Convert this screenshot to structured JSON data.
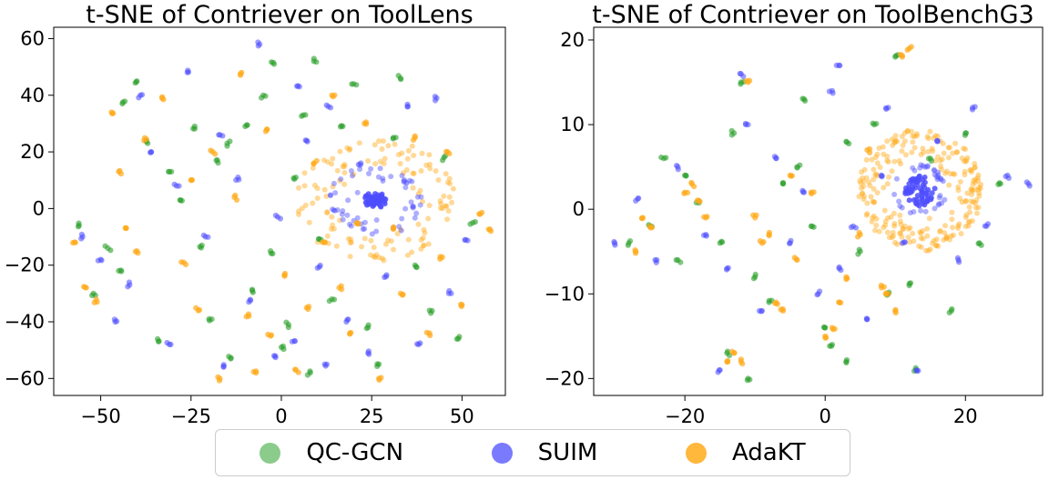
{
  "legend": {
    "items": [
      {
        "label": "QC-GCN",
        "color": "#2ca02c"
      },
      {
        "label": "SUIM",
        "color": "#4d4dff"
      },
      {
        "label": "AdaKT",
        "color": "#ffaa1a"
      }
    ]
  },
  "chart_data": [
    {
      "type": "scatter",
      "title": "t-SNE of Contriever on ToolLens",
      "xlabel": "",
      "ylabel": "",
      "xlim": [
        -63,
        62
      ],
      "ylim": [
        -66,
        64
      ],
      "xticks": [
        -50,
        -25,
        0,
        25,
        50
      ],
      "xtick_labels": [
        "−50",
        "−25",
        "0",
        "25",
        "50"
      ],
      "yticks": [
        -60,
        -40,
        -20,
        0,
        20,
        40,
        60
      ],
      "ytick_labels": [
        "−60",
        "−40",
        "−20",
        "0",
        "20",
        "40",
        "60"
      ],
      "grid": false,
      "series": [
        {
          "name": "QC-GCN",
          "color": "#2ca02c",
          "points": [
            [
              -56,
              -6
            ],
            [
              -48,
              -14
            ],
            [
              -45,
              -22
            ],
            [
              -44,
              37
            ],
            [
              -40,
              45
            ],
            [
              -37,
              23
            ],
            [
              -31,
              13
            ],
            [
              -28,
              3
            ],
            [
              -24,
              29
            ],
            [
              -22,
              -13
            ],
            [
              -18,
              17
            ],
            [
              -15,
              23
            ],
            [
              -10,
              29
            ],
            [
              -8,
              -29
            ],
            [
              -5,
              40
            ],
            [
              -2,
              51
            ],
            [
              0,
              -49
            ],
            [
              4,
              11
            ],
            [
              6,
              33
            ],
            [
              9,
              52
            ],
            [
              11,
              -11
            ],
            [
              14,
              -32
            ],
            [
              20,
              44
            ],
            [
              24,
              -42
            ],
            [
              31,
              25
            ],
            [
              33,
              46
            ],
            [
              37,
              -20
            ],
            [
              41,
              -36
            ],
            [
              45,
              18
            ],
            [
              49,
              -46
            ],
            [
              53,
              -5
            ],
            [
              -52,
              -30
            ],
            [
              -34,
              -47
            ],
            [
              -20,
              -39
            ],
            [
              -14,
              -53
            ],
            [
              -3,
              -15
            ],
            [
              2,
              -41
            ],
            [
              8,
              -58
            ],
            [
              17,
              29
            ],
            [
              27,
              -55
            ]
          ]
        },
        {
          "name": "SUIM",
          "color": "#4d4dff",
          "points": [
            [
              -55,
              -10
            ],
            [
              -50,
              -18
            ],
            [
              -42,
              -27
            ],
            [
              -39,
              40
            ],
            [
              -36,
              20
            ],
            [
              -29,
              8
            ],
            [
              -26,
              48
            ],
            [
              -21,
              -10
            ],
            [
              -17,
              26
            ],
            [
              -12,
              11
            ],
            [
              -9,
              -33
            ],
            [
              -6,
              58
            ],
            [
              -1,
              -3
            ],
            [
              3,
              -47
            ],
            [
              7,
              24
            ],
            [
              10,
              -21
            ],
            [
              13,
              36
            ],
            [
              18,
              -40
            ],
            [
              22,
              16
            ],
            [
              29,
              -24
            ],
            [
              34,
              10
            ],
            [
              38,
              -48
            ],
            [
              43,
              39
            ],
            [
              47,
              -30
            ],
            [
              51,
              -11
            ],
            [
              -46,
              -40
            ],
            [
              -31,
              -48
            ],
            [
              -16,
              -56
            ],
            [
              -2,
              -52
            ],
            [
              12,
              -55
            ],
            [
              24,
              -51
            ],
            [
              35,
              36
            ],
            [
              5,
              43
            ]
          ]
        },
        {
          "name": "AdaKT",
          "color": "#ffaa1a",
          "points": [
            [
              -57,
              -12
            ],
            [
              -54,
              -28
            ],
            [
              -51,
              -33
            ],
            [
              -47,
              34
            ],
            [
              -43,
              -7
            ],
            [
              -38,
              24
            ],
            [
              -33,
              39
            ],
            [
              -27,
              -19
            ],
            [
              -23,
              -36
            ],
            [
              -19,
              20
            ],
            [
              -13,
              4
            ],
            [
              -9,
              -38
            ],
            [
              -7,
              -58
            ],
            [
              -4,
              28
            ],
            [
              1,
              -23
            ],
            [
              4,
              -57
            ],
            [
              9,
              16
            ],
            [
              12,
              -12
            ],
            [
              16,
              -28
            ],
            [
              19,
              -44
            ],
            [
              23,
              30
            ],
            [
              31,
              -7
            ],
            [
              37,
              25
            ],
            [
              41,
              -44
            ],
            [
              46,
              20
            ],
            [
              50,
              -34
            ],
            [
              55,
              -2
            ],
            [
              58,
              -8
            ],
            [
              -40,
              -15
            ],
            [
              -25,
              10
            ],
            [
              -11,
              48
            ],
            [
              -3,
              -45
            ],
            [
              7,
              -35
            ],
            [
              14,
              40
            ],
            [
              21,
              -5
            ],
            [
              27,
              -60
            ],
            [
              33,
              -30
            ],
            [
              44,
              -17
            ],
            [
              -45,
              13
            ],
            [
              -17,
              -60
            ]
          ]
        }
      ],
      "clusters": [
        {
          "name": "AdaKT-ring",
          "color": "#ffaa1a",
          "center": [
            26,
            3
          ],
          "radius": [
            10,
            22
          ],
          "count": 130
        },
        {
          "name": "SUIM-ring",
          "color": "#4d4dff",
          "center": [
            26,
            3
          ],
          "radius": [
            5,
            13
          ],
          "count": 55
        },
        {
          "name": "SUIM-core",
          "color": "#4d4dff",
          "center": [
            26,
            3
          ],
          "radius": [
            0,
            3
          ],
          "count": 45
        }
      ]
    },
    {
      "type": "scatter",
      "title": "t-SNE of Contriever on ToolBenchG3",
      "xlabel": "",
      "ylabel": "",
      "xlim": [
        -33,
        31
      ],
      "ylim": [
        -22,
        21.5
      ],
      "xticks": [
        -20,
        0,
        20
      ],
      "xtick_labels": [
        "−20",
        "0",
        "20"
      ],
      "yticks": [
        -20,
        -10,
        0,
        10,
        20
      ],
      "ytick_labels": [
        "−20",
        "−10",
        "0",
        "10",
        "20"
      ],
      "grid": false,
      "series": [
        {
          "name": "QC-GCN",
          "color": "#2ca02c",
          "points": [
            [
              -28,
              -4
            ],
            [
              -25,
              -2
            ],
            [
              -23,
              6
            ],
            [
              -20,
              4
            ],
            [
              -18,
              1
            ],
            [
              -15,
              -4
            ],
            [
              -13,
              9
            ],
            [
              -12,
              15
            ],
            [
              -10,
              -8
            ],
            [
              -8,
              -11
            ],
            [
              -6,
              3
            ],
            [
              -4,
              5
            ],
            [
              -2,
              -2
            ],
            [
              0,
              -14
            ],
            [
              1,
              -16
            ],
            [
              3,
              8
            ],
            [
              5,
              -5
            ],
            [
              7,
              10
            ],
            [
              9,
              -10
            ],
            [
              10,
              18
            ],
            [
              12,
              -9
            ],
            [
              15,
              6
            ],
            [
              18,
              -12
            ],
            [
              20,
              9
            ],
            [
              22,
              -4
            ],
            [
              25,
              3
            ],
            [
              -14,
              -17
            ],
            [
              -11,
              -20
            ],
            [
              3,
              -18
            ],
            [
              13,
              -19
            ],
            [
              -21,
              -6
            ],
            [
              -3,
              13
            ]
          ]
        },
        {
          "name": "SUIM",
          "color": "#4d4dff",
          "points": [
            [
              -30,
              -4
            ],
            [
              -27,
              1
            ],
            [
              -24,
              -6
            ],
            [
              -21,
              5
            ],
            [
              -17,
              -3
            ],
            [
              -14,
              -7
            ],
            [
              -12,
              16
            ],
            [
              -11,
              10
            ],
            [
              -9,
              -12
            ],
            [
              -7,
              6
            ],
            [
              -5,
              -4
            ],
            [
              -3,
              2
            ],
            [
              -1,
              -10
            ],
            [
              1,
              14
            ],
            [
              2,
              -7
            ],
            [
              4,
              -2
            ],
            [
              6,
              -13
            ],
            [
              8,
              4
            ],
            [
              9,
              12
            ],
            [
              11,
              -4
            ],
            [
              13,
              -19
            ],
            [
              16,
              8
            ],
            [
              19,
              -6
            ],
            [
              21,
              12
            ],
            [
              23,
              -2
            ],
            [
              26,
              4
            ],
            [
              29,
              3
            ],
            [
              -15,
              -19
            ],
            [
              2,
              17
            ]
          ]
        },
        {
          "name": "AdaKT",
          "color": "#ffaa1a",
          "points": [
            [
              -26,
              -1
            ],
            [
              -25,
              -2
            ],
            [
              -20,
              2
            ],
            [
              -19,
              3
            ],
            [
              -18,
              1
            ],
            [
              -13,
              -17
            ],
            [
              -12,
              -18
            ],
            [
              -11,
              15
            ],
            [
              -9,
              -4
            ],
            [
              -8,
              -3
            ],
            [
              -7,
              -11
            ],
            [
              -6,
              -12
            ],
            [
              -5,
              4
            ],
            [
              -2,
              2
            ],
            [
              0,
              -15
            ],
            [
              1,
              -14
            ],
            [
              3,
              -8
            ],
            [
              5,
              -3
            ],
            [
              8,
              -9
            ],
            [
              9,
              -10
            ],
            [
              11,
              18
            ],
            [
              12,
              19
            ],
            [
              -14,
              -18
            ],
            [
              -27,
              -5
            ],
            [
              -17,
              -1
            ],
            [
              -4,
              -6
            ],
            [
              2,
              -11
            ],
            [
              6,
              7
            ],
            [
              10,
              -12
            ],
            [
              -10,
              -1
            ]
          ]
        }
      ],
      "clusters": [
        {
          "name": "AdaKT-ring",
          "color": "#ffaa1a",
          "center": [
            13.5,
            2.2
          ],
          "radius": [
            4,
            8.8
          ],
          "count": 240
        },
        {
          "name": "SUIM-ring",
          "color": "#4d4dff",
          "center": [
            13.5,
            2.2
          ],
          "radius": [
            2.5,
            3.8
          ],
          "count": 35
        },
        {
          "name": "SUIM-core",
          "color": "#4d4dff",
          "center": [
            13.5,
            2.2
          ],
          "radius": [
            0,
            2.2
          ],
          "count": 60
        }
      ]
    }
  ]
}
